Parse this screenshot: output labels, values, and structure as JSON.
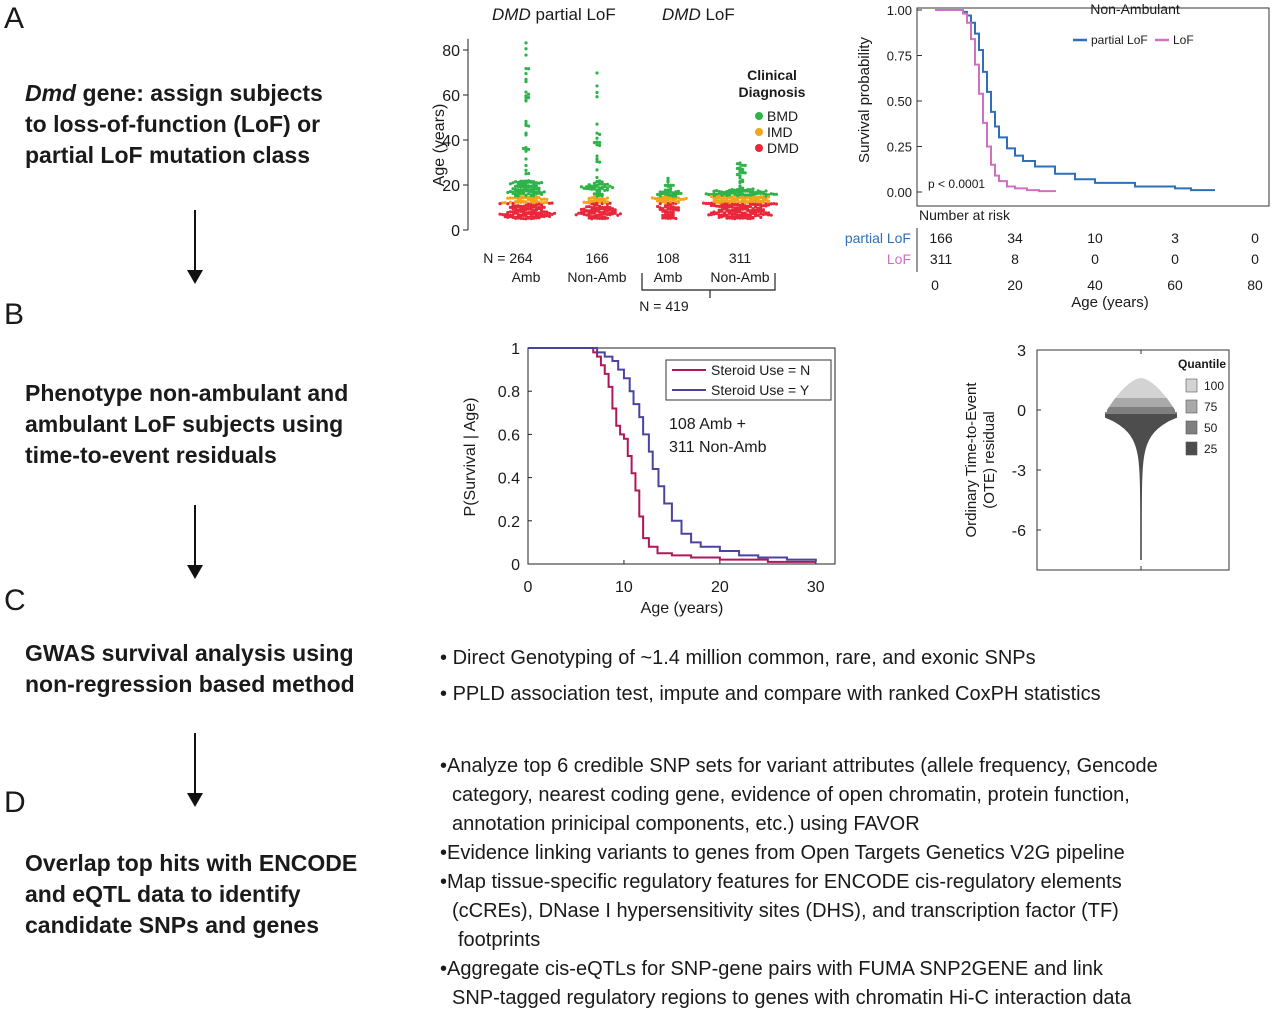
{
  "panels": [
    {
      "letter": "A",
      "step": [
        "Dmd",
        " gene: assign subjects",
        "to loss-of-function (LoF) or",
        "partial LoF mutation class"
      ]
    },
    {
      "letter": "B",
      "step": [
        "Phenotype non-ambulant and",
        "ambulant LoF subjects using",
        "time-to-event residuals"
      ]
    },
    {
      "letter": "C",
      "step": [
        "GWAS survival analysis using",
        "non-regression based method"
      ]
    },
    {
      "letter": "D",
      "step": [
        "Overlap top hits with ENCODE",
        "and eQTL data to identify",
        "candidate SNPs and genes"
      ]
    }
  ],
  "bullets_c": [
    "Direct Genotyping of ~1.4 million common, rare, and exonic SNPs",
    "PPLD association test, impute and compare with ranked CoxPH statistics"
  ],
  "bullets_d": [
    [
      "Analyze top 6 credible SNP sets for variant attributes (allele frequency, Gencode",
      "category, nearest coding gene, evidence of open chromatin, protein function,",
      "annotation prinicipal components, etc.) using FAVOR"
    ],
    [
      "Evidence linking variants to genes from Open Targets Genetics V2G pipeline"
    ],
    [
      "Map tissue-specific regulatory features for ENCODE cis-regulatory elements",
      "(cCREs), DNase I hypersensitivity sites (DHS), and transcription factor (TF)",
      "footprints"
    ],
    [
      "Aggregate cis-eQTLs for SNP-gene pairs with FUMA SNP2GENE and link",
      "SNP-tagged regulatory regions to genes with chromatin Hi-C interaction data"
    ]
  ],
  "colors": {
    "bmd": "#2eb34a",
    "imd": "#f3a51a",
    "dmd": "#e8283a",
    "partial_lof": "#2f6eb8",
    "lof": "#d070c0",
    "steroid_n": "#b0165a",
    "steroid_y": "#4a44a0"
  },
  "chart_data": [
    {
      "type": "scatter",
      "title_groups": [
        {
          "gene": "DMD",
          "text": " partial LoF"
        },
        {
          "gene": "DMD",
          "text": " LoF"
        }
      ],
      "ylabel": "Age (years)",
      "yticks": [
        0,
        20,
        40,
        60,
        80
      ],
      "ylim": [
        0,
        85
      ],
      "legend": {
        "title": [
          "Clinical",
          "Diagnosis"
        ],
        "items": [
          "BMD",
          "IMD",
          "DMD"
        ]
      },
      "groups": [
        {
          "n_label": "N = 264",
          "label": "Amb",
          "n": 264,
          "max_age": 84
        },
        {
          "n_label": "166",
          "label": "Non-Amb",
          "n": 166,
          "max_age": 70
        },
        {
          "n_label": "108",
          "label": "Amb",
          "n": 108,
          "max_age": 25
        },
        {
          "n_label": "311",
          "label": "Non-Amb",
          "n": 311,
          "max_age": 30
        }
      ],
      "bracket_label": "N = 419"
    },
    {
      "type": "line",
      "title": "Non-Ambulant",
      "ylabel": "Survival probability",
      "xlabel": "Age (years)",
      "yticks": [
        "0.00",
        "0.25",
        "0.50",
        "0.75",
        "1.00"
      ],
      "xticks": [
        0,
        20,
        40,
        60,
        80
      ],
      "xlim": [
        0,
        80
      ],
      "ylim": [
        0,
        1
      ],
      "pvalue": "p < 0.0001",
      "series": [
        {
          "name": "partial LoF",
          "x": [
            0,
            6,
            7,
            8,
            9,
            10,
            11,
            12,
            13,
            14,
            15,
            16,
            18,
            20,
            22,
            25,
            30,
            35,
            40,
            50,
            60,
            64,
            70
          ],
          "y": [
            1,
            1,
            0.99,
            0.97,
            0.93,
            0.87,
            0.78,
            0.66,
            0.55,
            0.44,
            0.36,
            0.3,
            0.24,
            0.2,
            0.17,
            0.14,
            0.1,
            0.07,
            0.05,
            0.03,
            0.02,
            0.01,
            0.01
          ]
        },
        {
          "name": "LoF",
          "x": [
            0,
            6,
            7,
            8,
            9,
            10,
            11,
            12,
            13,
            14,
            15,
            16,
            18,
            20,
            23,
            26,
            30
          ],
          "y": [
            1,
            1,
            0.98,
            0.93,
            0.84,
            0.7,
            0.54,
            0.38,
            0.25,
            0.15,
            0.09,
            0.06,
            0.03,
            0.02,
            0.01,
            0.005,
            0.0
          ]
        }
      ],
      "risk_table": {
        "title": "Number at risk",
        "rows": [
          {
            "name": "partial LoF",
            "values": [
              "166",
              "34",
              "10",
              "3",
              "0"
            ]
          },
          {
            "name": "LoF",
            "values": [
              "311",
              "8",
              "0",
              "0",
              "0"
            ]
          }
        ]
      }
    },
    {
      "type": "line",
      "ylabel": "P(Survival | Age)",
      "xlabel": "Age (years)",
      "xticks": [
        0,
        10,
        20,
        30
      ],
      "yticks": [
        "0",
        "0.2",
        "0.4",
        "0.6",
        "0.8",
        "1"
      ],
      "xlim": [
        0,
        32
      ],
      "ylim": [
        0,
        1
      ],
      "annotation": [
        "108 Amb +",
        "311 Non-Amb"
      ],
      "series": [
        {
          "name": "Steroid Use = N",
          "x": [
            0,
            6,
            6.8,
            7.2,
            7.6,
            8.0,
            8.4,
            8.8,
            9.2,
            9.6,
            10.0,
            10.4,
            10.8,
            11.2,
            11.6,
            12.0,
            12.6,
            13.5,
            15,
            17,
            20,
            25,
            30
          ],
          "y": [
            1,
            1,
            0.98,
            0.96,
            0.92,
            0.88,
            0.82,
            0.72,
            0.64,
            0.6,
            0.58,
            0.5,
            0.42,
            0.34,
            0.22,
            0.12,
            0.08,
            0.05,
            0.04,
            0.03,
            0.02,
            0.01,
            0.01
          ]
        },
        {
          "name": "Steroid Use = Y",
          "x": [
            0,
            6.5,
            7.2,
            8.0,
            8.8,
            9.4,
            10.0,
            10.6,
            11.0,
            11.6,
            12.0,
            12.6,
            13.0,
            13.6,
            14.2,
            15,
            16,
            17,
            18,
            20,
            22,
            24,
            27,
            30
          ],
          "y": [
            1,
            1,
            0.98,
            0.96,
            0.94,
            0.9,
            0.86,
            0.8,
            0.74,
            0.68,
            0.6,
            0.52,
            0.44,
            0.36,
            0.28,
            0.2,
            0.14,
            0.1,
            0.08,
            0.06,
            0.04,
            0.03,
            0.02,
            0.01
          ]
        }
      ]
    },
    {
      "type": "area",
      "ylabel": [
        "Ordinary Time-to-Event",
        "(OTE) residual"
      ],
      "yticks": [
        "3",
        "0",
        "-3",
        "-6"
      ],
      "ylim": [
        -8,
        3
      ],
      "legend": {
        "title": "Quantile",
        "items": [
          "100",
          "75",
          "50",
          "25"
        ]
      }
    }
  ]
}
